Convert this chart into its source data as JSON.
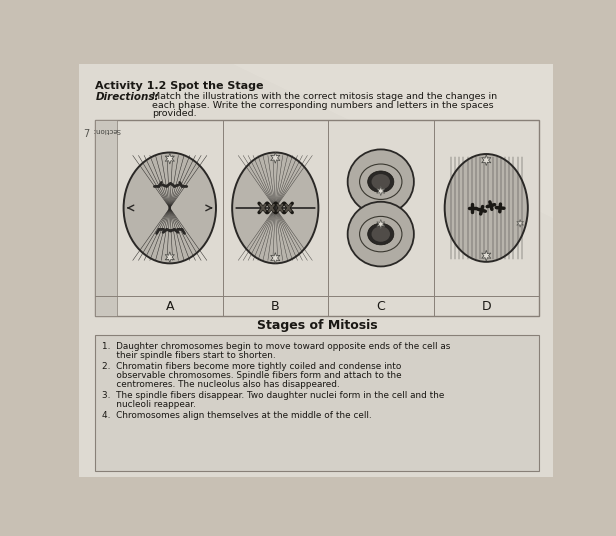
{
  "title": "Activity 1.2 Spot the Stage",
  "directions_label": "Directions:",
  "directions_line1": "Match the illustrations with the correct mitosis stage and the changes in",
  "directions_line2": "each phase. Write the corresponding numbers and letters in the spaces",
  "directions_line3": "provided.",
  "section_label": "Section:",
  "table_labels": [
    "A",
    "B",
    "C",
    "D"
  ],
  "table_title": "Stages of Mitosis",
  "list_items": [
    [
      "1.  Daughter chromosomes begin to move toward opposite ends of the cell as",
      "     their spindle fibers start to shorten."
    ],
    [
      "2.  Chromatin fibers become more tightly coiled and condense into",
      "     observable chromosomes. Spindle fibers form and attach to the",
      "     centromeres. The nucleolus also has disappeared."
    ],
    [
      "3.  The spindle fibers disappear. Two daughter nuclei form in the cell and the",
      "     nucleoli reappear."
    ],
    [
      "4.  Chromosomes align themselves at the middle of the cell."
    ]
  ],
  "bg_color": "#c8c0b4",
  "paper_color": "#dedad2",
  "table_bg": "#d8d4cc",
  "list_bg": "#d4d0c8",
  "border_color": "#888078",
  "text_color": "#1a1814",
  "cell_fill": "#c0bcb4",
  "dark_cell": "#a8a49c"
}
